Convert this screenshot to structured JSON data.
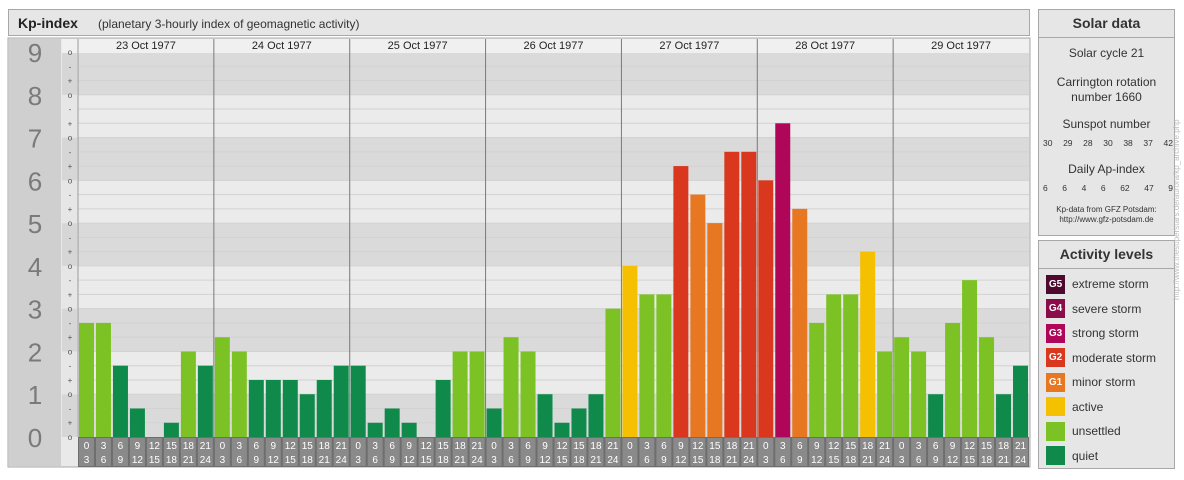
{
  "header": {
    "title": "Kp-index",
    "subtitle": "(planetary 3-hourly index of geomagnetic activity)"
  },
  "chart_data": {
    "type": "bar",
    "ylim": [
      0,
      9
    ],
    "y_tick_labels": [
      "0",
      "1",
      "2",
      "3",
      "4",
      "5",
      "6",
      "7",
      "8",
      "9"
    ],
    "minor_tick_labels": [
      "o",
      "+",
      "-"
    ],
    "days": [
      "23 Oct 1977",
      "24 Oct 1977",
      "25 Oct 1977",
      "26 Oct 1977",
      "27 Oct 1977",
      "28 Oct 1977",
      "29 Oct 1977"
    ],
    "hour_labels": [
      [
        "0",
        "3"
      ],
      [
        "3",
        "6"
      ],
      [
        "6",
        "9"
      ],
      [
        "9",
        "12"
      ],
      [
        "12",
        "15"
      ],
      [
        "15",
        "18"
      ],
      [
        "18",
        "21"
      ],
      [
        "21",
        "24"
      ]
    ],
    "values": [
      [
        2.667,
        2.667,
        1.667,
        0.667,
        0,
        0.333,
        2,
        1.667
      ],
      [
        2.333,
        2,
        1.333,
        1.333,
        1.333,
        1,
        1.333,
        1.667
      ],
      [
        1.667,
        0.333,
        0.667,
        0.333,
        0,
        1.333,
        2,
        2
      ],
      [
        0.667,
        2.333,
        2,
        1,
        0.333,
        0.667,
        1,
        3
      ],
      [
        4,
        3.333,
        3.333,
        6.333,
        5.667,
        5,
        6.667,
        6.667
      ],
      [
        6,
        7.333,
        5.333,
        2.667,
        3.333,
        3.333,
        4.333,
        2
      ],
      [
        2.333,
        2,
        1,
        2.667,
        3.667,
        2.333,
        1,
        1.667
      ]
    ]
  },
  "solar": {
    "title": "Solar data",
    "cycle_text": "Solar cycle 21",
    "carrington_line1": "Carrington rotation",
    "carrington_line2": "number 1660",
    "sunspot_title": "Sunspot number",
    "sunspot_values": [
      "30",
      "29",
      "28",
      "30",
      "38",
      "37",
      "42"
    ],
    "ap_title": "Daily Ap-index",
    "ap_values": [
      "6",
      "6",
      "4",
      "6",
      "62",
      "47",
      "9"
    ],
    "credit_line1": "Kp-data from GFZ Potsdam:",
    "credit_line2": "http://www.gfz-potsdam.de"
  },
  "activity": {
    "title": "Activity levels",
    "items": [
      {
        "code": "G5",
        "label": "extreme storm",
        "color": "#4d0a2e"
      },
      {
        "code": "G4",
        "label": "severe storm",
        "color": "#8b0c4a"
      },
      {
        "code": "G3",
        "label": "strong storm",
        "color": "#b0065a"
      },
      {
        "code": "G2",
        "label": "moderate storm",
        "color": "#d9381e"
      },
      {
        "code": "G1",
        "label": "minor storm",
        "color": "#e87722"
      },
      {
        "code": "",
        "label": "active",
        "color": "#f5c000"
      },
      {
        "code": "",
        "label": "unsettled",
        "color": "#7dc225"
      },
      {
        "code": "",
        "label": "quiet",
        "color": "#0f8a4a"
      }
    ]
  },
  "watermark": "http://www.thesuperstars.de/aurora/kp_archive.php"
}
